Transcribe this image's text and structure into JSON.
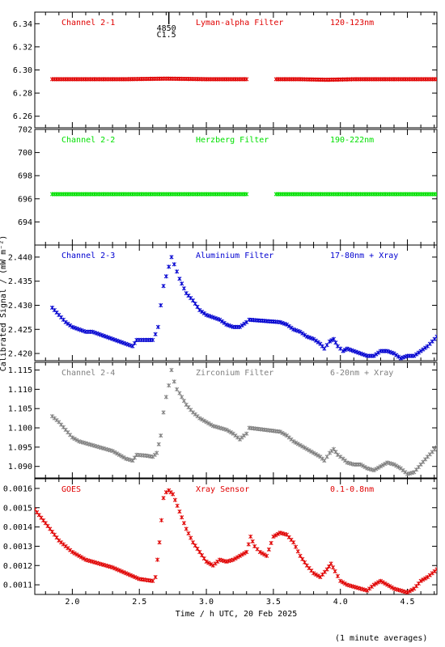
{
  "figure": {
    "ylabel": "Calibrated Signal / (mW m⁻²)",
    "xlabel": "Time / h UTC, 20 Feb 2025",
    "footnote": "(1 minute averages)",
    "flare_marker": {
      "x": 2.72,
      "label_top": "4850",
      "label_bottom": "C1.5"
    }
  },
  "chart_data": [
    {
      "type": "scatter",
      "title": "Channel 2-1",
      "filter": "Lyman-alpha Filter",
      "band": "120-123nm",
      "color": "#e00000",
      "ylim": [
        6.25,
        6.35
      ],
      "yticks": [
        6.26,
        6.28,
        6.3,
        6.32,
        6.34
      ],
      "ytick_labels": [
        "6.26",
        "6.28",
        "6.30",
        "6.32",
        "6.34"
      ],
      "xlim": [
        1.72,
        4.72
      ],
      "points": [
        [
          1.85,
          6.292
        ],
        [
          2.1,
          6.292
        ],
        [
          2.4,
          6.292
        ],
        [
          2.7,
          6.2925
        ],
        [
          3.0,
          6.292
        ],
        [
          3.3,
          6.292
        ],
        [
          3.52,
          6.292
        ],
        [
          3.7,
          6.292
        ],
        [
          3.9,
          6.2915
        ],
        [
          4.1,
          6.292
        ],
        [
          4.4,
          6.292
        ],
        [
          4.72,
          6.292
        ]
      ],
      "gaps": [
        [
          3.32,
          3.52
        ]
      ]
    },
    {
      "type": "scatter",
      "title": "Channel 2-2",
      "filter": "Herzberg Filter",
      "band": "190-222nm",
      "color": "#00e000",
      "ylim": [
        692.0,
        702.0
      ],
      "yticks": [
        694,
        696,
        698,
        700,
        702
      ],
      "ytick_labels": [
        "694",
        "696",
        "698",
        "700",
        "702"
      ],
      "xlim": [
        1.72,
        4.72
      ],
      "points": [
        [
          1.85,
          696.4
        ],
        [
          2.2,
          696.4
        ],
        [
          2.6,
          696.4
        ],
        [
          3.0,
          696.4
        ],
        [
          3.3,
          696.4
        ],
        [
          3.52,
          696.4
        ],
        [
          3.9,
          696.4
        ],
        [
          4.3,
          696.4
        ],
        [
          4.72,
          696.4
        ]
      ],
      "gaps": [
        [
          3.32,
          3.52
        ]
      ]
    },
    {
      "type": "scatter",
      "title": "Channel 2-3",
      "filter": "Aluminium Filter",
      "band": "17-80nm + Xray",
      "color": "#0000d0",
      "ylim": [
        2.4185,
        2.4425
      ],
      "yticks": [
        2.42,
        2.425,
        2.43,
        2.435,
        2.44
      ],
      "ytick_labels": [
        "2.420",
        "2.425",
        "2.430",
        "2.435",
        "2.440"
      ],
      "xlim": [
        1.72,
        4.72
      ],
      "points": [
        [
          1.85,
          2.4295
        ],
        [
          1.9,
          2.428
        ],
        [
          1.95,
          2.4265
        ],
        [
          2.0,
          2.4255
        ],
        [
          2.05,
          2.425
        ],
        [
          2.1,
          2.4245
        ],
        [
          2.15,
          2.4245
        ],
        [
          2.2,
          2.424
        ],
        [
          2.25,
          2.4235
        ],
        [
          2.3,
          2.423
        ],
        [
          2.35,
          2.4225
        ],
        [
          2.4,
          2.422
        ],
        [
          2.45,
          2.4215
        ],
        [
          2.48,
          2.4228
        ],
        [
          2.55,
          2.4228
        ],
        [
          2.6,
          2.4228
        ],
        [
          2.62,
          2.424
        ],
        [
          2.64,
          2.4255
        ],
        [
          2.66,
          2.43
        ],
        [
          2.68,
          2.434
        ],
        [
          2.7,
          2.436
        ],
        [
          2.72,
          2.438
        ],
        [
          2.74,
          2.44
        ],
        [
          2.76,
          2.4385
        ],
        [
          2.78,
          2.437
        ],
        [
          2.8,
          2.4355
        ],
        [
          2.85,
          2.4325
        ],
        [
          2.9,
          2.431
        ],
        [
          2.95,
          2.429
        ],
        [
          3.0,
          2.428
        ],
        [
          3.05,
          2.4275
        ],
        [
          3.1,
          2.427
        ],
        [
          3.15,
          2.426
        ],
        [
          3.2,
          2.4255
        ],
        [
          3.25,
          2.4255
        ],
        [
          3.3,
          2.4265
        ],
        [
          3.32,
          2.427
        ],
        [
          3.55,
          2.4265
        ],
        [
          3.6,
          2.426
        ],
        [
          3.65,
          2.425
        ],
        [
          3.7,
          2.4245
        ],
        [
          3.75,
          2.4235
        ],
        [
          3.8,
          2.423
        ],
        [
          3.85,
          2.422
        ],
        [
          3.88,
          2.421
        ],
        [
          3.92,
          2.4225
        ],
        [
          3.95,
          2.423
        ],
        [
          3.98,
          2.4215
        ],
        [
          4.02,
          2.4205
        ],
        [
          4.05,
          2.421
        ],
        [
          4.1,
          2.4205
        ],
        [
          4.15,
          2.42
        ],
        [
          4.2,
          2.4195
        ],
        [
          4.25,
          2.4195
        ],
        [
          4.3,
          2.4205
        ],
        [
          4.35,
          2.4205
        ],
        [
          4.4,
          2.42
        ],
        [
          4.45,
          2.419
        ],
        [
          4.5,
          2.4195
        ],
        [
          4.55,
          2.4195
        ],
        [
          4.6,
          2.4205
        ],
        [
          4.65,
          2.4215
        ],
        [
          4.72,
          2.4235
        ]
      ],
      "gaps": []
    },
    {
      "type": "scatter",
      "title": "Channel 2-4",
      "filter": "Zirconium Filter",
      "band": "6-20nm + Xray",
      "color": "#808080",
      "ylim": [
        1.087,
        1.117
      ],
      "yticks": [
        1.09,
        1.095,
        1.1,
        1.105,
        1.11,
        1.115
      ],
      "ytick_labels": [
        "1.090",
        "1.095",
        "1.100",
        "1.105",
        "1.110",
        "1.115"
      ],
      "xlim": [
        1.72,
        4.72
      ],
      "points": [
        [
          1.85,
          1.103
        ],
        [
          1.9,
          1.1015
        ],
        [
          1.95,
          1.0995
        ],
        [
          2.0,
          1.0975
        ],
        [
          2.05,
          1.0965
        ],
        [
          2.1,
          1.096
        ],
        [
          2.15,
          1.0955
        ],
        [
          2.2,
          1.095
        ],
        [
          2.25,
          1.0945
        ],
        [
          2.3,
          1.094
        ],
        [
          2.35,
          1.093
        ],
        [
          2.4,
          1.092
        ],
        [
          2.45,
          1.0915
        ],
        [
          2.48,
          1.093
        ],
        [
          2.55,
          1.0928
        ],
        [
          2.6,
          1.0925
        ],
        [
          2.63,
          1.0935
        ],
        [
          2.66,
          1.098
        ],
        [
          2.68,
          1.104
        ],
        [
          2.7,
          1.108
        ],
        [
          2.72,
          1.111
        ],
        [
          2.74,
          1.115
        ],
        [
          2.76,
          1.112
        ],
        [
          2.78,
          1.11
        ],
        [
          2.8,
          1.109
        ],
        [
          2.85,
          1.106
        ],
        [
          2.9,
          1.104
        ],
        [
          2.95,
          1.1025
        ],
        [
          3.0,
          1.1015
        ],
        [
          3.05,
          1.1005
        ],
        [
          3.1,
          1.1
        ],
        [
          3.15,
          1.0995
        ],
        [
          3.2,
          1.0985
        ],
        [
          3.25,
          1.097
        ],
        [
          3.28,
          1.098
        ],
        [
          3.3,
          1.0985
        ],
        [
          3.32,
          1.1
        ],
        [
          3.55,
          1.099
        ],
        [
          3.6,
          1.098
        ],
        [
          3.65,
          1.0965
        ],
        [
          3.7,
          1.0955
        ],
        [
          3.75,
          1.0945
        ],
        [
          3.8,
          1.0935
        ],
        [
          3.85,
          1.0925
        ],
        [
          3.88,
          1.0915
        ],
        [
          3.92,
          1.0935
        ],
        [
          3.95,
          1.0945
        ],
        [
          3.98,
          1.093
        ],
        [
          4.02,
          1.092
        ],
        [
          4.05,
          1.091
        ],
        [
          4.1,
          1.0905
        ],
        [
          4.15,
          1.0905
        ],
        [
          4.2,
          1.0895
        ],
        [
          4.25,
          1.089
        ],
        [
          4.3,
          1.09
        ],
        [
          4.35,
          1.091
        ],
        [
          4.4,
          1.0905
        ],
        [
          4.45,
          1.0895
        ],
        [
          4.5,
          1.088
        ],
        [
          4.55,
          1.0885
        ],
        [
          4.6,
          1.0905
        ],
        [
          4.65,
          1.0925
        ],
        [
          4.72,
          1.095
        ]
      ],
      "gaps": []
    },
    {
      "type": "scatter",
      "title": "GOES",
      "filter": "Xray Sensor",
      "band": "0.1-0.8nm",
      "color": "#e00000",
      "ylim": [
        0.00105,
        0.00165
      ],
      "yticks": [
        0.0011,
        0.0012,
        0.0013,
        0.0014,
        0.0015,
        0.0016
      ],
      "ytick_labels": [
        "0.0011",
        "0.0012",
        "0.0013",
        "0.0014",
        "0.0015",
        "0.0016"
      ],
      "xlim": [
        1.72,
        4.72
      ],
      "points": [
        [
          1.72,
          0.00149
        ],
        [
          1.8,
          0.00142
        ],
        [
          1.9,
          0.00133
        ],
        [
          2.0,
          0.00127
        ],
        [
          2.1,
          0.00123
        ],
        [
          2.2,
          0.00121
        ],
        [
          2.3,
          0.00119
        ],
        [
          2.4,
          0.00116
        ],
        [
          2.5,
          0.00113
        ],
        [
          2.6,
          0.00112
        ],
        [
          2.62,
          0.00114
        ],
        [
          2.65,
          0.00132
        ],
        [
          2.68,
          0.00155
        ],
        [
          2.7,
          0.00158
        ],
        [
          2.72,
          0.00159
        ],
        [
          2.75,
          0.00157
        ],
        [
          2.8,
          0.00148
        ],
        [
          2.85,
          0.00139
        ],
        [
          2.9,
          0.00132
        ],
        [
          2.95,
          0.00127
        ],
        [
          3.0,
          0.00122
        ],
        [
          3.05,
          0.0012
        ],
        [
          3.1,
          0.00123
        ],
        [
          3.15,
          0.00122
        ],
        [
          3.2,
          0.00123
        ],
        [
          3.25,
          0.00125
        ],
        [
          3.3,
          0.00127
        ],
        [
          3.33,
          0.00135
        ],
        [
          3.36,
          0.0013
        ],
        [
          3.4,
          0.00127
        ],
        [
          3.45,
          0.00125
        ],
        [
          3.5,
          0.00135
        ],
        [
          3.55,
          0.00137
        ],
        [
          3.6,
          0.00136
        ],
        [
          3.65,
          0.00132
        ],
        [
          3.7,
          0.00125
        ],
        [
          3.75,
          0.0012
        ],
        [
          3.8,
          0.00116
        ],
        [
          3.85,
          0.00114
        ],
        [
          3.9,
          0.00118
        ],
        [
          3.93,
          0.00121
        ],
        [
          3.96,
          0.00117
        ],
        [
          4.0,
          0.00112
        ],
        [
          4.05,
          0.0011
        ],
        [
          4.1,
          0.00109
        ],
        [
          4.15,
          0.00108
        ],
        [
          4.2,
          0.00107
        ],
        [
          4.25,
          0.0011
        ],
        [
          4.3,
          0.00112
        ],
        [
          4.35,
          0.0011
        ],
        [
          4.4,
          0.00108
        ],
        [
          4.45,
          0.00107
        ],
        [
          4.5,
          0.00106
        ],
        [
          4.55,
          0.00108
        ],
        [
          4.6,
          0.00112
        ],
        [
          4.65,
          0.00114
        ],
        [
          4.72,
          0.00118
        ]
      ],
      "gaps": []
    }
  ],
  "x_axis": {
    "ticks": [
      2.0,
      2.5,
      3.0,
      3.5,
      4.0,
      4.5
    ],
    "tick_labels": [
      "2.0",
      "2.5",
      "3.0",
      "3.5",
      "4.0",
      "4.5"
    ],
    "minor_step": 0.1
  }
}
